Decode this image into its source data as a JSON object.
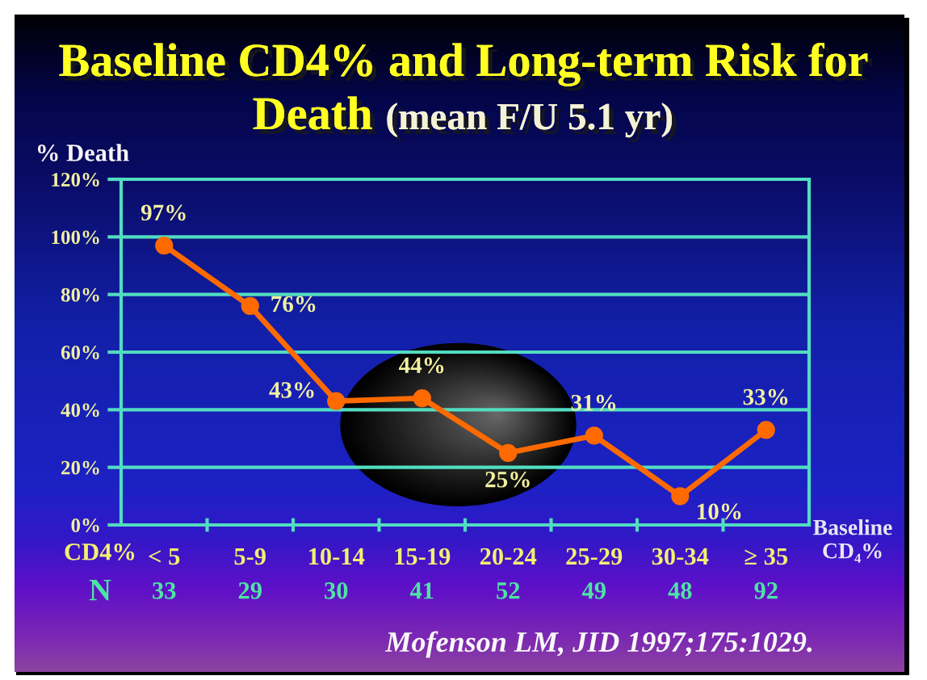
{
  "chart_data": {
    "type": "line",
    "title": "Baseline CD4% and Long-term Risk for Death (mean F/U 5.1 yr)",
    "ylabel": "% Death",
    "xlabel": "Baseline CD₄%",
    "categories": [
      "< 5",
      "5-9",
      "10-14",
      "15-19",
      "20-24",
      "25-29",
      "30-34",
      "≥ 35"
    ],
    "series": [
      {
        "color": "#ff6a00",
        "values": [
          97,
          76,
          43,
          44,
          25,
          31,
          10,
          33
        ],
        "value_labels": [
          "97%",
          "76%",
          "43%",
          "44%",
          "25%",
          "31%",
          "10%",
          "33%"
        ]
      }
    ],
    "ylim": [
      0,
      120
    ],
    "yticks": [
      {
        "value": 0,
        "label": "0%"
      },
      {
        "value": 20,
        "label": "20%"
      },
      {
        "value": 40,
        "label": "40%"
      },
      {
        "value": 60,
        "label": "60%"
      },
      {
        "value": 80,
        "label": "80%"
      },
      {
        "value": 100,
        "label": "100%"
      },
      {
        "value": 120,
        "label": "120%"
      }
    ],
    "grid": "y",
    "marker": "circle",
    "line_style": "solid",
    "annotations": [
      "CD4%",
      "N",
      "33",
      "29",
      "30",
      "41",
      "52",
      "49",
      "48",
      "92",
      "Mofenson LM, JID 1997;175:1029."
    ]
  }
}
